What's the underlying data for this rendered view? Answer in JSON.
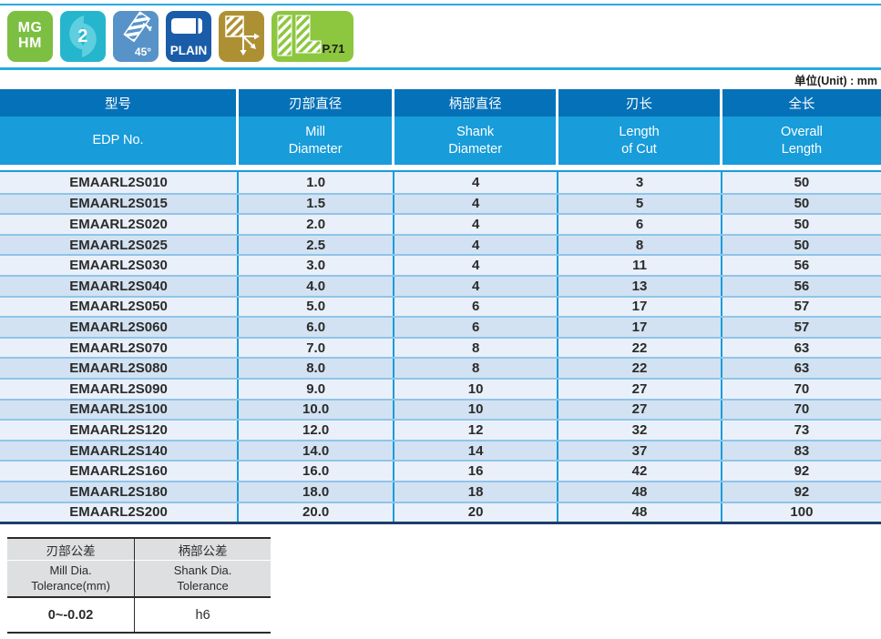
{
  "unit_note": "单位(Unit) : mm",
  "icon_bar": {
    "material_badge": {
      "label": "MG\nHM",
      "color": "#7CBF43"
    },
    "flute_count_badge": {
      "label": "2",
      "color": "#25B6CD",
      "swirl_color": "#5FCFDF"
    },
    "helix_angle_badge": {
      "label": "45°",
      "color": "#5793C9"
    },
    "shank_type_badge": {
      "label": "PLAIN",
      "color": "#1A5CA8"
    },
    "cutting_direction_badge": {
      "color": "#AE9034"
    },
    "page_reference_badge": {
      "label": "P.71",
      "color": "#8DC63F",
      "text_color": "#1d1d1b"
    }
  },
  "main_table": {
    "columns": [
      {
        "cn": "型号",
        "en": "EDP No."
      },
      {
        "cn": "刃部直径",
        "en": "Mill\nDiameter"
      },
      {
        "cn": "柄部直径",
        "en": "Shank\nDiameter"
      },
      {
        "cn": "刃长",
        "en": "Length\nof Cut"
      },
      {
        "cn": "全长",
        "en": "Overall\nLength"
      }
    ],
    "rows": [
      [
        "EMAARL2S010",
        "1.0",
        "4",
        "3",
        "50"
      ],
      [
        "EMAARL2S015",
        "1.5",
        "4",
        "5",
        "50"
      ],
      [
        "EMAARL2S020",
        "2.0",
        "4",
        "6",
        "50"
      ],
      [
        "EMAARL2S025",
        "2.5",
        "4",
        "8",
        "50"
      ],
      [
        "EMAARL2S030",
        "3.0",
        "4",
        "11",
        "56"
      ],
      [
        "EMAARL2S040",
        "4.0",
        "4",
        "13",
        "56"
      ],
      [
        "EMAARL2S050",
        "5.0",
        "6",
        "17",
        "57"
      ],
      [
        "EMAARL2S060",
        "6.0",
        "6",
        "17",
        "57"
      ],
      [
        "EMAARL2S070",
        "7.0",
        "8",
        "22",
        "63"
      ],
      [
        "EMAARL2S080",
        "8.0",
        "8",
        "22",
        "63"
      ],
      [
        "EMAARL2S090",
        "9.0",
        "10",
        "27",
        "70"
      ],
      [
        "EMAARL2S100",
        "10.0",
        "10",
        "27",
        "70"
      ],
      [
        "EMAARL2S120",
        "12.0",
        "12",
        "32",
        "73"
      ],
      [
        "EMAARL2S140",
        "14.0",
        "14",
        "37",
        "83"
      ],
      [
        "EMAARL2S160",
        "16.0",
        "16",
        "42",
        "92"
      ],
      [
        "EMAARL2S180",
        "18.0",
        "18",
        "48",
        "92"
      ],
      [
        "EMAARL2S200",
        "20.0",
        "20",
        "48",
        "100"
      ]
    ]
  },
  "tolerance_table": {
    "columns": [
      {
        "cn": "刃部公差",
        "en": "Mill Dia.\nTolerance(mm)",
        "value": "0~-0.02"
      },
      {
        "cn": "柄部公差",
        "en": "Shank Dia.\nTolerance",
        "value": "h6"
      }
    ]
  },
  "colors": {
    "rule_blue": "#2AA9E0",
    "header_dark_blue": "#0571B8",
    "header_bright_blue": "#189CDA",
    "row_light": "#E9F0F9",
    "row_alt": "#D2E2F2",
    "row_divider": "#90C4E9",
    "column_divider": "#189CDA",
    "table_bottom": "#1D3E6D",
    "tolerance_header_gray": "#DEDFE0"
  }
}
